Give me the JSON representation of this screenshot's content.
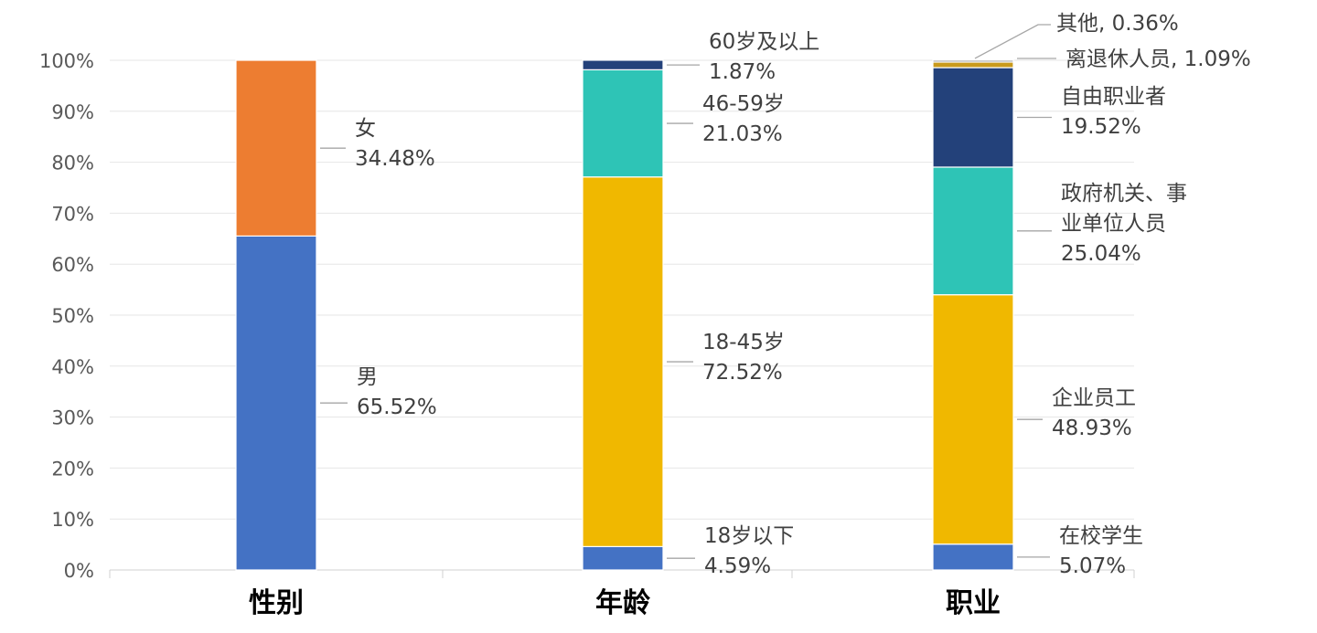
{
  "chart_data": {
    "type": "bar",
    "stacked": true,
    "ylim": [
      0,
      100
    ],
    "yticks": [
      "0%",
      "10%",
      "20%",
      "30%",
      "40%",
      "50%",
      "60%",
      "70%",
      "80%",
      "90%",
      "100%"
    ],
    "grid": true,
    "legend": "none",
    "colors": [
      "#4472c4",
      "#ed7d31",
      "#f0b800",
      "#2ec4b6",
      "#23417a",
      "#c99a1c",
      "#8a8a8a"
    ],
    "categories": [
      {
        "name": "性别",
        "segments": [
          {
            "label": "男",
            "value": 65.52,
            "display": "65.52%",
            "color": "#4472c4"
          },
          {
            "label": "女",
            "value": 34.48,
            "display": "34.48%",
            "color": "#ed7d31"
          }
        ]
      },
      {
        "name": "年龄",
        "segments": [
          {
            "label": "18岁以下",
            "value": 4.59,
            "display": "4.59%",
            "color": "#4472c4"
          },
          {
            "label": "18-45岁",
            "value": 72.52,
            "display": "72.52%",
            "color": "#f0b800"
          },
          {
            "label": "46-59岁",
            "value": 21.03,
            "display": "21.03%",
            "color": "#2ec4b6"
          },
          {
            "label": "60岁及以上",
            "value": 1.87,
            "display": "1.87%",
            "color": "#23417a"
          }
        ]
      },
      {
        "name": "职业",
        "segments": [
          {
            "label": "在校学生",
            "value": 5.07,
            "display": "5.07%",
            "color": "#4472c4"
          },
          {
            "label": "企业员工",
            "value": 48.93,
            "display": "48.93%",
            "color": "#f0b800"
          },
          {
            "label": "政府机关、事业单位人员",
            "value": 25.04,
            "display": "25.04%",
            "color": "#2ec4b6"
          },
          {
            "label": "自由职业者",
            "value": 19.52,
            "display": "19.52%",
            "color": "#23417a"
          },
          {
            "label": "离退休人员",
            "value": 1.09,
            "display": "1.09%",
            "color": "#c99a1c"
          },
          {
            "label": "其他",
            "value": 0.36,
            "display": "0.36%",
            "color": "#8a8a8a"
          }
        ]
      }
    ]
  }
}
